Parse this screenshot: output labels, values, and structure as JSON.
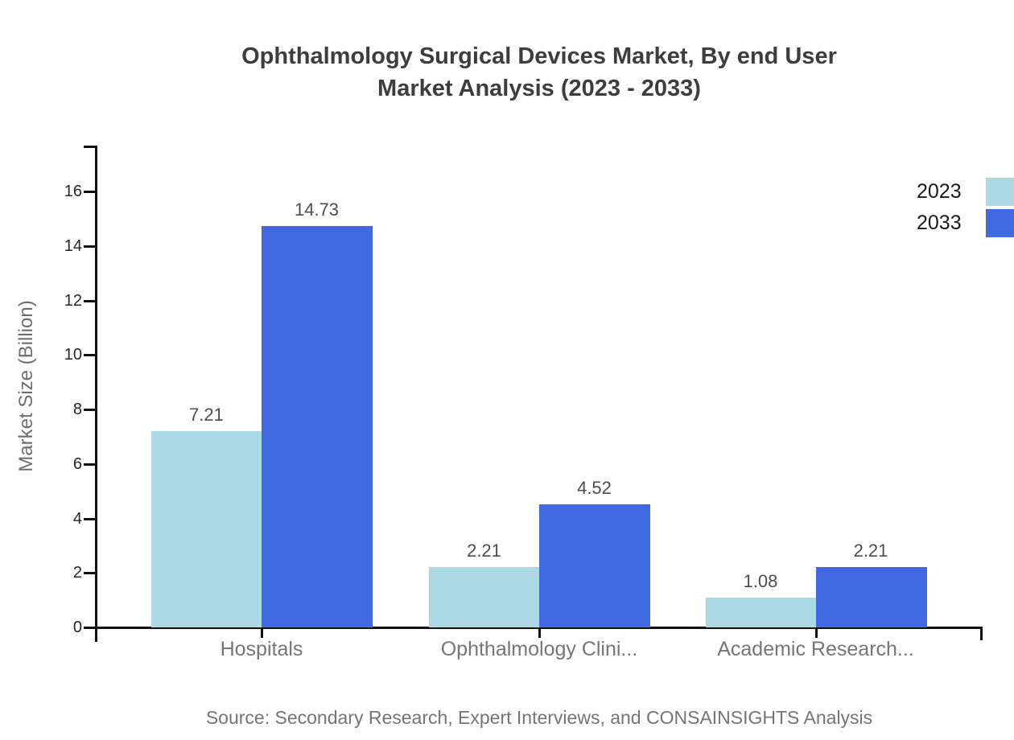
{
  "chart_data": {
    "type": "bar",
    "title_line1": "Ophthalmology Surgical Devices Market, By end User",
    "title_line2": "Market Analysis (2023 - 2033)",
    "ylabel": "Market Size (Billion)",
    "source": "Source: Secondary Research, Expert Interviews, and CONSAINSIGHTS Analysis",
    "categories": [
      "Hospitals",
      "Ophthalmology Clini...",
      "Academic Research..."
    ],
    "series": [
      {
        "name": "2023",
        "color": "#add8e6",
        "values": [
          7.21,
          2.21,
          1.08
        ]
      },
      {
        "name": "2033",
        "color": "#4169e1",
        "values": [
          14.73,
          4.52,
          2.21
        ]
      }
    ],
    "yticks": [
      0,
      2,
      4,
      6,
      8,
      10,
      12,
      14,
      16
    ],
    "ylim": [
      0,
      17.7
    ],
    "grid": false,
    "legend_position": "top-right",
    "axis_color": "#111111"
  }
}
